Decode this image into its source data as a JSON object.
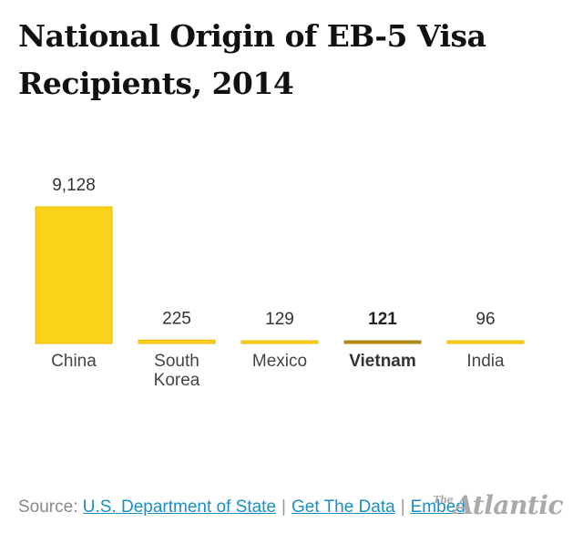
{
  "chart_data": {
    "type": "bar",
    "title": "National Origin of EB-5 Visa Recipients, 2014",
    "categories": [
      "China",
      "South Korea",
      "Mexico",
      "Vietnam",
      "India"
    ],
    "category_lines": [
      [
        "China"
      ],
      [
        "South",
        "Korea"
      ],
      [
        "Mexico"
      ],
      [
        "Vietnam"
      ],
      [
        "India"
      ]
    ],
    "values": [
      9128,
      225,
      129,
      121,
      96
    ],
    "value_labels": [
      "9,128",
      "225",
      "129",
      "121",
      "96"
    ],
    "highlighted": "Vietnam",
    "colors": {
      "bar": "#fad219",
      "bar_edge": "#e8b800",
      "highlight": "#b08a10"
    },
    "ylim": [
      0,
      9128
    ],
    "grid": false,
    "legend": "none"
  },
  "source": {
    "prefix": "Source:",
    "link1": "U.S. Department of State",
    "link2": "Get The Data",
    "link3": "Embed"
  },
  "logo": {
    "the": "The",
    "name": "Atlantic"
  }
}
